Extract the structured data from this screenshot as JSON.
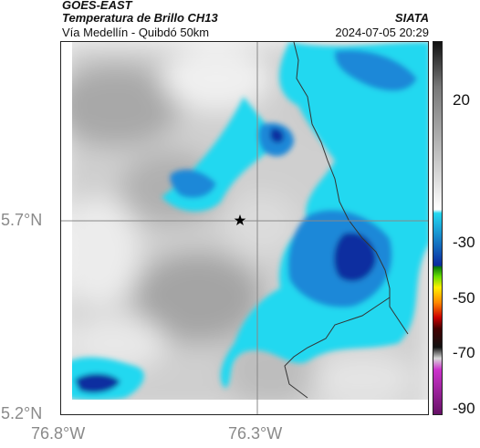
{
  "header": {
    "satellite": "GOES-EAST",
    "product": "Temperatura de Brillo CH13",
    "route": "Vía Medellín - Quibdó 50km",
    "agency": "SIATA",
    "datetime": "2024-07-05 20:29"
  },
  "map": {
    "y_ticks": [
      "5.7°N",
      "5.2°N"
    ],
    "x_ticks": [
      "76.8°W",
      "76.3°W"
    ],
    "marker": "star",
    "colors": {
      "cloud_light": "#22d8f0",
      "cloud_mid": "#1e88d8",
      "cloud_deep": "#0a2fa0",
      "border": "#333333",
      "grid": "#888888"
    }
  },
  "colorbar": {
    "ticks": [
      "20",
      "-30",
      "-50",
      "-70",
      "-90"
    ],
    "stops": [
      "#111111",
      "#777777",
      "#d8d8d8",
      "#ffffff",
      "#22d8f0",
      "#0b2aa0",
      "#0a7a0a",
      "#66dd00",
      "#ffee00",
      "#ff8800",
      "#cc0000",
      "#440000",
      "#111111",
      "#d8d8d8",
      "#cc33cc",
      "#661166"
    ]
  }
}
